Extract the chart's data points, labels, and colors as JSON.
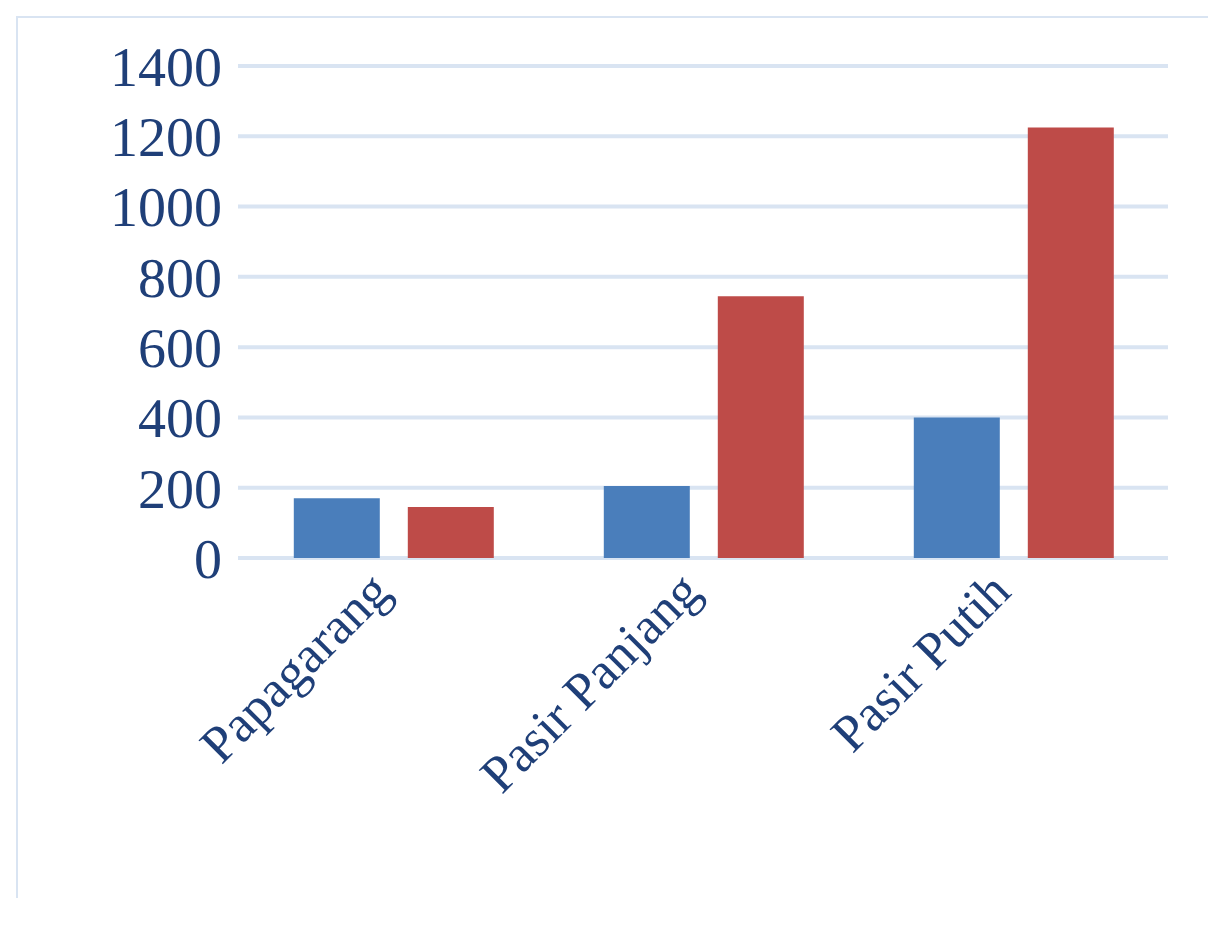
{
  "chart_data": {
    "type": "bar",
    "categories": [
      "Papagarang",
      "Pasir Panjang",
      "Pasir Putih"
    ],
    "series": [
      {
        "color": "#4a7ebb",
        "values": [
          170,
          205,
          400
        ]
      },
      {
        "color": "#be4b48",
        "values": [
          145,
          745,
          1225
        ]
      }
    ],
    "ylim": [
      0,
      1400
    ],
    "yticks": [
      0,
      200,
      400,
      600,
      800,
      1000,
      1200,
      1400
    ],
    "grid": "y",
    "legend": false
  }
}
